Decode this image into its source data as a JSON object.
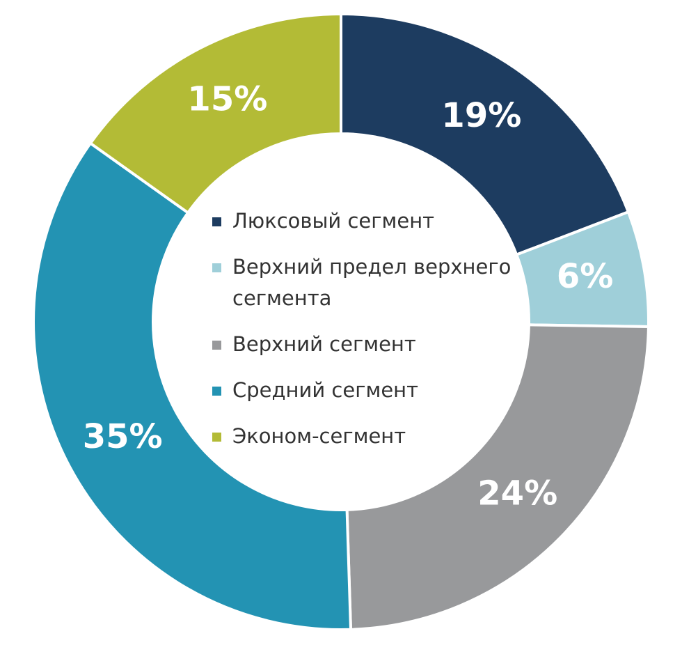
{
  "chart_data": {
    "type": "donut",
    "categories": [
      "Люксовый сегмент",
      "Верхний предел верхнего сегмента",
      "Верхний сегмент",
      "Средний сегмент",
      "Эконом-сегмент"
    ],
    "values": [
      19,
      6,
      24,
      35,
      15
    ],
    "value_labels": [
      "19%",
      "6%",
      "24%",
      "35%",
      "15%"
    ],
    "colors": [
      "#1d3c60",
      "#9fcfd9",
      "#98999b",
      "#2393b3",
      "#b3bb36"
    ]
  }
}
